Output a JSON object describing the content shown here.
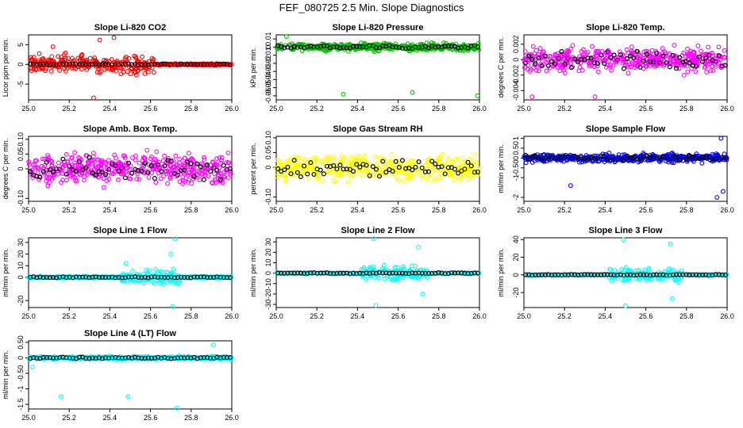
{
  "page": {
    "title": "FEF_080725  2.5 Min. Slope Diagnostics"
  },
  "chart_data": [
    {
      "type": "scatter",
      "title": "Slope Li-820 CO2",
      "xlabel": "",
      "ylabel": "Licor ppm per min.",
      "xlim": [
        25.0,
        26.0
      ],
      "ylim": [
        -9,
        7.5
      ],
      "xticks": [
        25.0,
        25.2,
        25.4,
        25.6,
        25.8,
        26.0
      ],
      "yticks": [
        -5,
        0,
        5
      ],
      "grid": false,
      "colors": {
        "scatter": "#ff0000",
        "black": "#000000"
      },
      "noise": {
        "base_spread": 0.25,
        "busy_window": [
          25.0,
          25.62
        ],
        "busy_spread": 3.2,
        "outliers": [
          [
            25.32,
            -8.5
          ],
          [
            25.42,
            6.8
          ],
          [
            25.35,
            6.2
          ],
          [
            25.12,
            4.5
          ]
        ]
      }
    },
    {
      "type": "scatter",
      "title": "Slope Li-820 Pressure",
      "xlabel": "",
      "ylabel": "kPa per min.",
      "xlim": [
        25.0,
        26.0
      ],
      "ylim": [
        -0.065,
        0.015
      ],
      "xticks": [
        25.0,
        25.2,
        25.4,
        25.6,
        25.8,
        26.0
      ],
      "yticks": [
        0.01,
        0.0,
        -0.01,
        -0.02,
        -0.03,
        -0.04,
        -0.05,
        -0.06
      ],
      "grid": false,
      "colors": {
        "scatter": "#00c000",
        "black": "#000000"
      },
      "noise": {
        "base_spread": 0.004,
        "busy_window": [
          25.0,
          26.0
        ],
        "busy_spread": 0.006,
        "outliers": [
          [
            25.33,
            -0.058
          ],
          [
            25.67,
            -0.056
          ],
          [
            25.99,
            -0.06
          ],
          [
            25.05,
            0.013
          ]
        ]
      }
    },
    {
      "type": "scatter",
      "title": "Slope Li-820 Temp.",
      "xlabel": "",
      "ylabel": "degrees C per min.",
      "xlim": [
        25.0,
        26.0
      ],
      "ylim": [
        -0.0052,
        0.0032
      ],
      "xticks": [
        25.0,
        25.2,
        25.4,
        25.6,
        25.8,
        26.0
      ],
      "yticks": [
        0.002,
        0.0,
        -0.002,
        -0.004
      ],
      "grid": false,
      "colors": {
        "scatter": "#ff00ff",
        "black": "#000000"
      },
      "noise": {
        "base_spread": 0.0022,
        "busy_window": [
          25.0,
          26.0
        ],
        "busy_spread": 0.0022,
        "outliers": [
          [
            25.04,
            -0.0048
          ],
          [
            25.35,
            -0.0048
          ]
        ]
      }
    },
    {
      "type": "scatter",
      "title": "Slope Amb. Box Temp.",
      "xlabel": "",
      "ylabel": "degrees C per min.",
      "xlim": [
        25.0,
        26.0
      ],
      "ylim": [
        -0.11,
        0.11
      ],
      "xticks": [
        25.0,
        25.2,
        25.4,
        25.6,
        25.8,
        26.0
      ],
      "yticks": [
        -0.1,
        0.0,
        0.05,
        0.1
      ],
      "grid": false,
      "colors": {
        "scatter": "#ff00ff",
        "black": "#000000"
      },
      "noise": {
        "base_spread": 0.07,
        "busy_window": [
          25.0,
          26.0
        ],
        "busy_spread": 0.07,
        "outliers": []
      }
    },
    {
      "type": "scatter",
      "title": "Slope Gas Stream RH",
      "xlabel": "",
      "ylabel": "percent per min.",
      "xlim": [
        25.0,
        26.0
      ],
      "ylim": [
        -0.115,
        0.105
      ],
      "xticks": [
        25.0,
        25.2,
        25.4,
        25.6,
        25.8,
        26.0
      ],
      "yticks": [
        -0.1,
        0.0,
        0.05,
        0.1
      ],
      "grid": false,
      "colors": {
        "scatter": "#ffff00",
        "black": "#000000"
      },
      "noise": {
        "base_spread": 0.06,
        "busy_window": [
          25.0,
          26.0
        ],
        "busy_spread": 0.06,
        "outliers": []
      }
    },
    {
      "type": "scatter",
      "title": "Slope Sample Flow",
      "xlabel": "",
      "ylabel": "ml/min per min.",
      "xlim": [
        25.0,
        26.0
      ],
      "ylim": [
        -2.2,
        1.1
      ],
      "xticks": [
        25.0,
        25.2,
        25.4,
        25.6,
        25.8,
        26.0
      ],
      "yticks": [
        -2.0,
        -1.0,
        -0.5,
        0.0,
        0.5,
        1.0
      ],
      "grid": false,
      "colors": {
        "scatter": "#0000ff",
        "black": "#000000"
      },
      "noise": {
        "base_spread": 0.25,
        "busy_window": [
          25.0,
          26.0
        ],
        "busy_spread": 0.3,
        "outliers": [
          [
            25.23,
            -1.4
          ],
          [
            25.95,
            -2.0
          ],
          [
            25.97,
            1.0
          ],
          [
            25.98,
            -1.7
          ]
        ]
      }
    },
    {
      "type": "scatter",
      "title": "Slope Line 1 Flow",
      "xlabel": "",
      "ylabel": "ml/min per min.",
      "xlim": [
        25.0,
        26.0
      ],
      "ylim": [
        -26,
        34
      ],
      "xticks": [
        25.0,
        25.2,
        25.4,
        25.6,
        25.8,
        26.0
      ],
      "yticks": [
        -20,
        0,
        10,
        20,
        30
      ],
      "grid": false,
      "colors": {
        "scatter": "#00ffff",
        "black": "#000000"
      },
      "noise": {
        "base_spread": 1.0,
        "busy_window": [
          25.45,
          25.75
        ],
        "busy_spread": 8.0,
        "outliers": [
          [
            25.72,
            33
          ],
          [
            25.71,
            -25
          ],
          [
            25.48,
            12
          ],
          [
            25.7,
            20
          ]
        ]
      }
    },
    {
      "type": "scatter",
      "title": "Slope Line 2 Flow",
      "xlabel": "",
      "ylabel": "ml/min per min.",
      "xlim": [
        25.0,
        26.0
      ],
      "ylim": [
        -33,
        34
      ],
      "xticks": [
        25.0,
        25.2,
        25.4,
        25.6,
        25.8,
        26.0
      ],
      "yticks": [
        -30,
        -20,
        -10,
        0,
        10,
        20,
        30
      ],
      "grid": false,
      "colors": {
        "scatter": "#00ffff",
        "black": "#000000"
      },
      "noise": {
        "base_spread": 1.0,
        "busy_window": [
          25.42,
          25.75
        ],
        "busy_spread": 10.0,
        "outliers": [
          [
            25.48,
            33
          ],
          [
            25.49,
            -31
          ],
          [
            25.7,
            25
          ],
          [
            25.72,
            -20
          ]
        ]
      }
    },
    {
      "type": "scatter",
      "title": "Slope Line 3 Flow",
      "xlabel": "",
      "ylabel": "ml/min per min.",
      "xlim": [
        25.0,
        26.0
      ],
      "ylim": [
        -37,
        42
      ],
      "xticks": [
        25.0,
        25.2,
        25.4,
        25.6,
        25.8,
        26.0
      ],
      "yticks": [
        -20,
        0,
        20,
        40
      ],
      "grid": false,
      "colors": {
        "scatter": "#00ffff",
        "black": "#000000"
      },
      "noise": {
        "base_spread": 1.0,
        "busy_window": [
          25.42,
          25.78
        ],
        "busy_spread": 10.0,
        "outliers": [
          [
            25.49,
            40
          ],
          [
            25.5,
            -35
          ],
          [
            25.72,
            35
          ],
          [
            25.73,
            -27
          ]
        ]
      }
    },
    {
      "type": "scatter",
      "title": "Slope Line 4 (LT) Flow",
      "xlabel": "",
      "ylabel": "ml/min per min.",
      "xlim": [
        25.0,
        26.0
      ],
      "ylim": [
        -1.65,
        0.55
      ],
      "xticks": [
        25.0,
        25.2,
        25.4,
        25.6,
        25.8,
        26.0
      ],
      "yticks": [
        -1.5,
        -1.0,
        -0.5,
        0.0,
        0.5
      ],
      "grid": false,
      "colors": {
        "scatter": "#00ffff",
        "black": "#000000"
      },
      "noise": {
        "base_spread": 0.05,
        "busy_window": [
          25.0,
          26.0
        ],
        "busy_spread": 0.07,
        "outliers": [
          [
            25.16,
            -1.25
          ],
          [
            25.49,
            -1.25
          ],
          [
            25.73,
            -1.62
          ],
          [
            25.02,
            -0.3
          ],
          [
            25.91,
            0.42
          ]
        ]
      }
    }
  ]
}
